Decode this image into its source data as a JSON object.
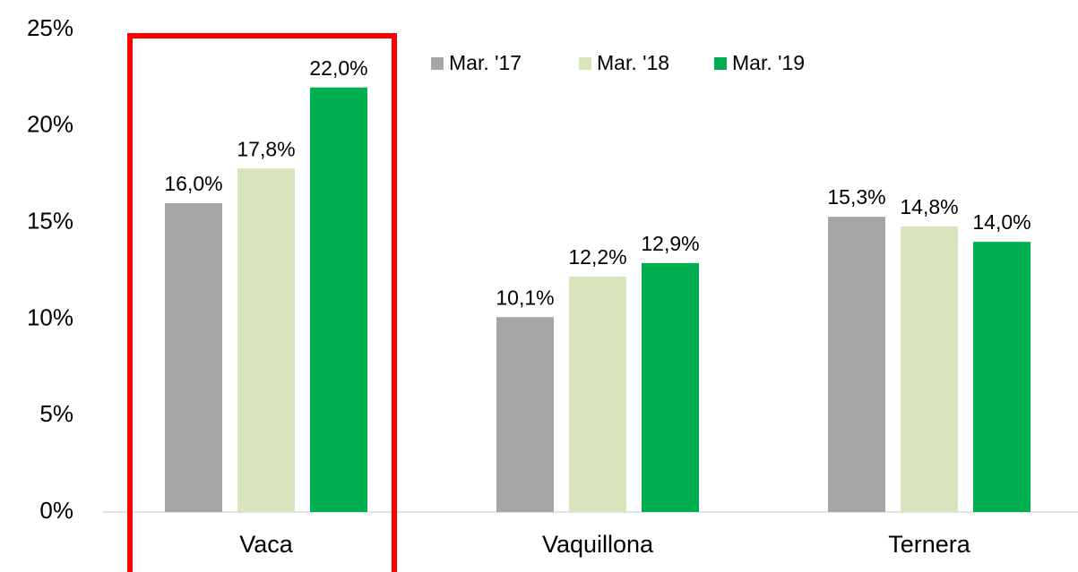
{
  "chart_data": {
    "type": "bar",
    "categories": [
      "Vaca",
      "Vaquillona",
      "Ternera"
    ],
    "series": [
      {
        "name": "Mar. '17",
        "color": "#a6a6a6",
        "values": [
          16.0,
          10.1,
          15.3
        ],
        "value_labels": [
          "16,0%",
          "10,1%",
          "15,3%"
        ]
      },
      {
        "name": "Mar. '18",
        "color": "#d8e4bc",
        "values": [
          17.8,
          12.2,
          14.8
        ],
        "value_labels": [
          "17,8%",
          "12,2%",
          "14,8%"
        ]
      },
      {
        "name": "Mar. '19",
        "color": "#00b050",
        "values": [
          22.0,
          12.9,
          14.0
        ],
        "value_labels": [
          "22,0%",
          "12,9%",
          "14,0%"
        ]
      }
    ],
    "ylim": [
      0,
      25
    ],
    "yticks": [
      {
        "value": 0,
        "label": "0%"
      },
      {
        "value": 5,
        "label": "5%"
      },
      {
        "value": 10,
        "label": "10%"
      },
      {
        "value": 15,
        "label": "15%"
      },
      {
        "value": 20,
        "label": "20%"
      },
      {
        "value": 25,
        "label": "25%"
      }
    ],
    "grid": false,
    "legend": "top"
  }
}
